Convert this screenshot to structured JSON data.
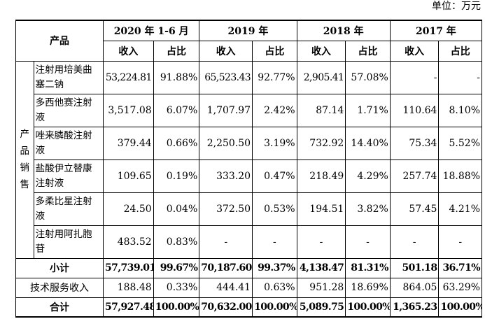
{
  "unit_note": "单位：万元",
  "header": {
    "product": "产品",
    "periods": [
      "2020 年 1-6 月",
      "2019 年",
      "2018 年",
      "2017 年"
    ],
    "revenue": "收入",
    "ratio": "占比"
  },
  "group_label": "产品销售",
  "rows": [
    {
      "name": "注射用培美曲塞二钠",
      "values": [
        "53,224.81",
        "91.88%",
        "65,523.43",
        "92.77%",
        "2,905.41",
        "57.08%",
        "-",
        "-"
      ]
    },
    {
      "name": "多西他赛注射液",
      "values": [
        "3,517.08",
        "6.07%",
        "1,707.97",
        "2.42%",
        "87.14",
        "1.71%",
        "110.64",
        "8.10%"
      ]
    },
    {
      "name": "唑来膦酸注射液",
      "values": [
        "379.44",
        "0.66%",
        "2,250.50",
        "3.19%",
        "732.92",
        "14.40%",
        "75.34",
        "5.52%"
      ]
    },
    {
      "name": "盐酸伊立替康注射液",
      "values": [
        "109.65",
        "0.19%",
        "333.20",
        "0.47%",
        "218.49",
        "4.29%",
        "257.74",
        "18.88%"
      ]
    },
    {
      "name": "多柔比星注射液",
      "values": [
        "24.50",
        "0.04%",
        "372.50",
        "0.53%",
        "194.51",
        "3.82%",
        "57.45",
        "4.21%"
      ]
    },
    {
      "name": "注射用阿扎胞苷",
      "values": [
        "483.52",
        "0.83%",
        "-",
        "-",
        "-",
        "-",
        "-",
        "-"
      ]
    }
  ],
  "subtotal": {
    "label": "小计",
    "values": [
      "57,739.01",
      "99.67%",
      "70,187.60",
      "99.37%",
      "4,138.47",
      "81.31%",
      "501.18",
      "36.71%"
    ]
  },
  "service": {
    "label": "技术服务收入",
    "values": [
      "188.48",
      "0.33%",
      "444.41",
      "0.63%",
      "951.28",
      "18.69%",
      "864.05",
      "63.29%"
    ]
  },
  "total": {
    "label": "合计",
    "values": [
      "57,927.48",
      "100.00%",
      "70,632.00",
      "100.00%",
      "5,089.75",
      "100.00%",
      "1,365.23",
      "100.00%"
    ]
  }
}
